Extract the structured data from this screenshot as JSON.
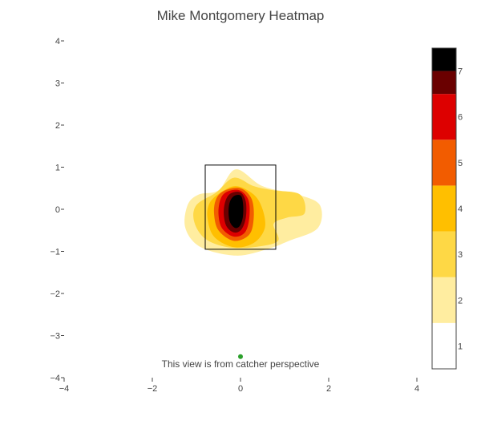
{
  "chart_data": {
    "type": "heatmap",
    "title": "Mike Montgomery Heatmap",
    "xlabel": "",
    "ylabel": "",
    "xlim": [
      -4,
      4
    ],
    "ylim": [
      -4,
      4
    ],
    "x_ticks": [
      "−4",
      "−2",
      "0",
      "2",
      "4"
    ],
    "y_ticks": [
      "4",
      "3",
      "2",
      "1",
      "0",
      "−1",
      "−2",
      "−3",
      "−4"
    ],
    "x_tick_values": [
      -4,
      -2,
      0,
      2,
      4
    ],
    "y_tick_values": [
      4,
      3,
      2,
      1,
      0,
      -1,
      -2,
      -3,
      -4
    ],
    "strike_zone": {
      "x0": -0.8,
      "x1": 0.8,
      "y0": -0.95,
      "y1": 1.05
    },
    "annotation": "This view is from catcher perspective",
    "catcher_marker": {
      "x": 0,
      "y": -3.5,
      "color": "#2ca02c"
    },
    "grid": false,
    "legend": "colorbar-right",
    "colorbar": {
      "ticks": [
        "1",
        "2",
        "3",
        "4",
        "5",
        "6",
        "7"
      ],
      "range": [
        0.5,
        7.5
      ],
      "bands": [
        {
          "from": 0.5,
          "to": 1.5,
          "color": "#ffffff"
        },
        {
          "from": 1.5,
          "to": 2.5,
          "color": "#ffeda0"
        },
        {
          "from": 2.5,
          "to": 3.5,
          "color": "#fed845"
        },
        {
          "from": 3.5,
          "to": 4.5,
          "color": "#ffbf00"
        },
        {
          "from": 4.5,
          "to": 5.5,
          "color": "#f25c00"
        },
        {
          "from": 5.5,
          "to": 6.5,
          "color": "#dd0000"
        },
        {
          "from": 6.5,
          "to": 7.0,
          "color": "#6a0000"
        },
        {
          "from": 7.0,
          "to": 7.5,
          "color": "#000000"
        }
      ]
    },
    "contour_levels": [
      {
        "level": 2,
        "color": "#ffeda0",
        "points": [
          [
            -0.5,
            0.45
          ],
          [
            -0.1,
            0.95
          ],
          [
            0.5,
            0.55
          ],
          [
            1.3,
            0.35
          ],
          [
            1.8,
            0.1
          ],
          [
            1.75,
            -0.45
          ],
          [
            1.1,
            -0.75
          ],
          [
            0.6,
            -0.95
          ],
          [
            -0.1,
            -1.1
          ],
          [
            -0.9,
            -0.9
          ],
          [
            -1.25,
            -0.45
          ],
          [
            -1.2,
            0.1
          ],
          [
            -0.95,
            0.35
          ]
        ]
      },
      {
        "level": 3,
        "color": "#fed845",
        "points": [
          [
            -0.55,
            0.4
          ],
          [
            -0.15,
            0.75
          ],
          [
            0.3,
            0.55
          ],
          [
            0.75,
            0.45
          ],
          [
            1.35,
            0.35
          ],
          [
            1.45,
            -0.1
          ],
          [
            1.05,
            -0.2
          ],
          [
            0.75,
            -0.35
          ],
          [
            0.85,
            -0.75
          ],
          [
            0.3,
            -0.9
          ],
          [
            -0.3,
            -0.9
          ],
          [
            -0.8,
            -0.7
          ],
          [
            -1.05,
            -0.3
          ],
          [
            -1.0,
            0.1
          ]
        ]
      },
      {
        "level": 4,
        "color": "#ffbf00",
        "points": [
          [
            -0.45,
            0.4
          ],
          [
            -0.1,
            0.55
          ],
          [
            0.3,
            0.35
          ],
          [
            0.5,
            0
          ],
          [
            0.55,
            -0.45
          ],
          [
            0.3,
            -0.8
          ],
          [
            -0.15,
            -0.9
          ],
          [
            -0.6,
            -0.65
          ],
          [
            -0.75,
            -0.2
          ],
          [
            -0.7,
            0.15
          ]
        ]
      },
      {
        "level": 5,
        "color": "#f25c00",
        "points": [
          [
            -0.35,
            0.45
          ],
          [
            0,
            0.5
          ],
          [
            0.25,
            0.25
          ],
          [
            0.3,
            -0.2
          ],
          [
            0.2,
            -0.6
          ],
          [
            -0.15,
            -0.75
          ],
          [
            -0.5,
            -0.5
          ],
          [
            -0.6,
            -0.1
          ],
          [
            -0.55,
            0.25
          ]
        ]
      },
      {
        "level": 6,
        "color": "#dd0000",
        "points": [
          [
            -0.3,
            0.42
          ],
          [
            -0.02,
            0.45
          ],
          [
            0.18,
            0.22
          ],
          [
            0.2,
            -0.2
          ],
          [
            0.1,
            -0.55
          ],
          [
            -0.15,
            -0.65
          ],
          [
            -0.42,
            -0.45
          ],
          [
            -0.5,
            -0.1
          ],
          [
            -0.45,
            0.25
          ]
        ]
      },
      {
        "level": 6.5,
        "color": "#6a0000",
        "points": [
          [
            -0.22,
            0.38
          ],
          [
            0,
            0.4
          ],
          [
            0.12,
            0.18
          ],
          [
            0.12,
            -0.2
          ],
          [
            0.02,
            -0.48
          ],
          [
            -0.15,
            -0.55
          ],
          [
            -0.32,
            -0.4
          ],
          [
            -0.38,
            -0.1
          ],
          [
            -0.34,
            0.2
          ]
        ]
      },
      {
        "level": 7,
        "color": "#000000",
        "points": [
          [
            -0.14,
            0.32
          ],
          [
            0.01,
            0.32
          ],
          [
            0.06,
            0.1
          ],
          [
            0.05,
            -0.2
          ],
          [
            -0.02,
            -0.4
          ],
          [
            -0.13,
            -0.44
          ],
          [
            -0.24,
            -0.3
          ],
          [
            -0.27,
            -0.05
          ],
          [
            -0.24,
            0.18
          ]
        ]
      }
    ]
  }
}
